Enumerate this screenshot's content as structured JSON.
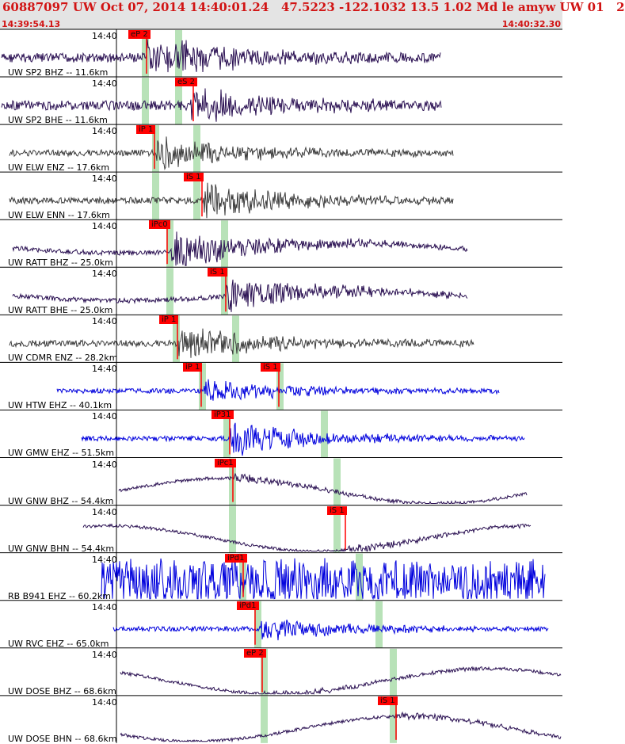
{
  "header": {
    "title": "60887097 UW Oct 07, 2014 14:40:01.24   47.5223 -122.1032 13.5 1.02 Md le amyw UW 01   2",
    "start_time": "14:39:54.13",
    "end_time": "14:40:32.30"
  },
  "colors": {
    "header_text": "#d11414",
    "header_bg": "#e4e4e4",
    "pick_flag": "#ff0000",
    "window_band": "#b8e2b8",
    "trace_purple": "#2a1052",
    "trace_gray": "#3c3c3c",
    "trace_blue": "#0000dd"
  },
  "panels": [
    {
      "label": "UW SP2 BHZ -- 11.6km",
      "time": "14:40",
      "color": "purple",
      "picks": [
        {
          "label": "eP 2"
        }
      ]
    },
    {
      "label": "UW SP2 BHE -- 11.6km",
      "time": "14:40",
      "color": "purple",
      "picks": [
        {
          "label": "eS 2"
        }
      ]
    },
    {
      "label": "UW ELW ENZ -- 17.6km",
      "time": "14:40",
      "color": "gray",
      "picks": [
        {
          "label": "iP 1"
        }
      ]
    },
    {
      "label": "UW ELW ENN -- 17.6km",
      "time": "14:40",
      "color": "gray",
      "picks": [
        {
          "label": "iS 1"
        }
      ]
    },
    {
      "label": "UW RATT BHZ -- 25.0km",
      "time": "14:40",
      "color": "purple",
      "picks": [
        {
          "label": "iPc0"
        }
      ]
    },
    {
      "label": "UW RATT BHE -- 25.0km",
      "time": "14:40",
      "color": "purple",
      "picks": [
        {
          "label": "iS 1"
        }
      ]
    },
    {
      "label": "UW CDMR ENZ -- 28.2km",
      "time": "14:40",
      "color": "gray",
      "picks": [
        {
          "label": "iP 1"
        }
      ]
    },
    {
      "label": "UW HTW EHZ -- 40.1km",
      "time": "14:40",
      "color": "blue",
      "picks": [
        {
          "label": "iP 1"
        },
        {
          "label": "iS 1"
        }
      ]
    },
    {
      "label": "UW GMW EHZ -- 51.5km",
      "time": "14:40",
      "color": "blue",
      "picks": [
        {
          "label": "iP31"
        }
      ]
    },
    {
      "label": "UW GNW BHZ -- 54.4km",
      "time": "14:40",
      "color": "purple",
      "picks": [
        {
          "label": "iPc1"
        }
      ]
    },
    {
      "label": "UW GNW BHN -- 54.4km",
      "time": "14:40",
      "color": "purple",
      "picks": [
        {
          "label": "iS 1"
        }
      ]
    },
    {
      "label": "RB B941 EHZ -- 60.2km",
      "time": "14:40",
      "color": "blue",
      "picks": [
        {
          "label": "iPd1"
        }
      ]
    },
    {
      "label": "UW RVC EHZ -- 65.0km",
      "time": "14:40",
      "color": "blue",
      "picks": [
        {
          "label": "iPd1"
        }
      ]
    },
    {
      "label": "UW DOSE BHZ -- 68.6km",
      "time": "14:40",
      "color": "purple",
      "picks": [
        {
          "label": "eP 2"
        }
      ]
    },
    {
      "label": "UW DOSE BHN -- 68.6km",
      "time": "14:40",
      "color": "purple",
      "picks": [
        {
          "label": "iS 1"
        }
      ]
    }
  ]
}
